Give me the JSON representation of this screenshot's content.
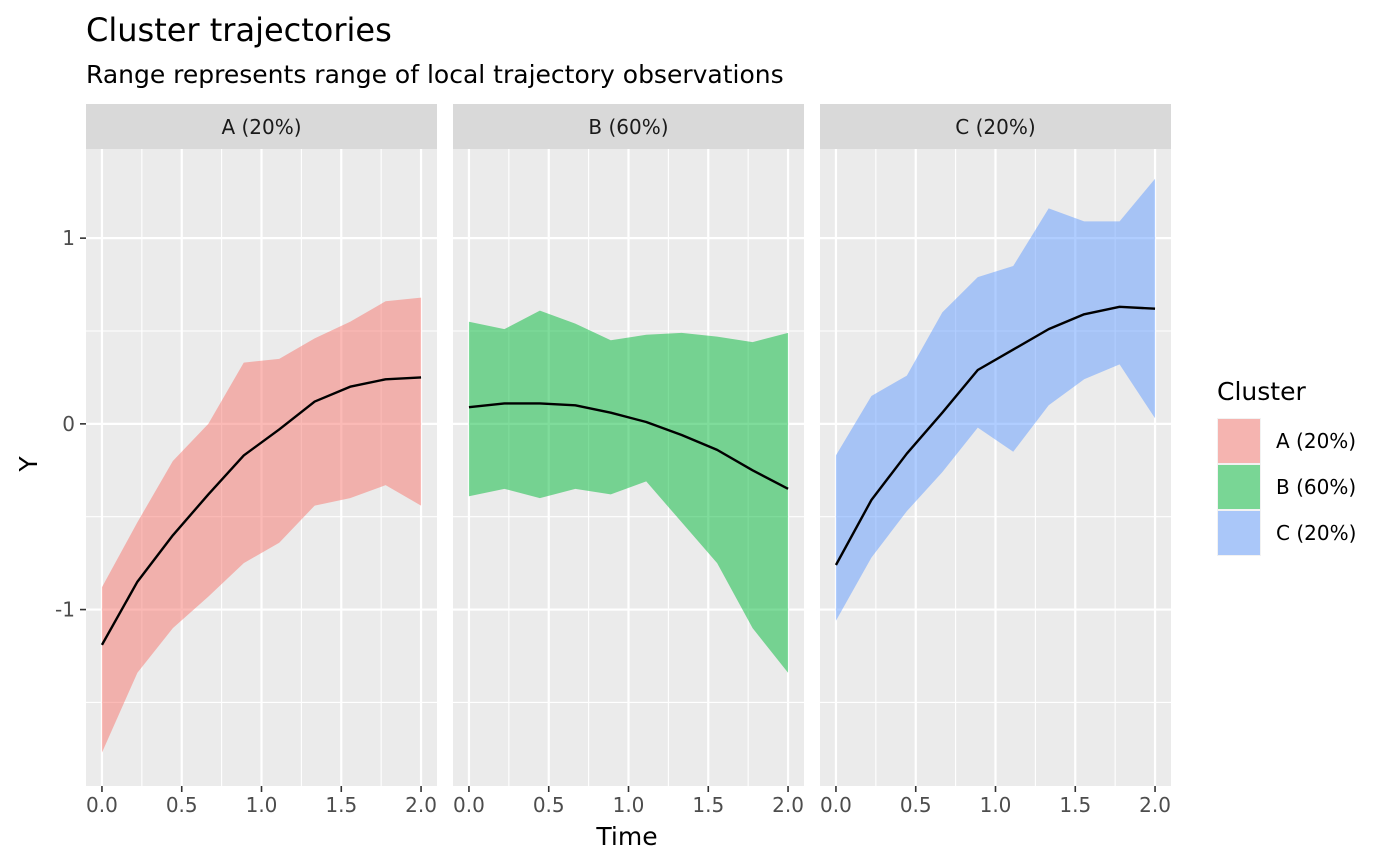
{
  "chart_data": {
    "type": "area",
    "title": "Cluster trajectories",
    "subtitle": "Range represents range of local trajectory observations",
    "xlabel": "Time",
    "ylabel": "Y",
    "xlim": [
      -0.1,
      2.1
    ],
    "ylim": [
      -1.95,
      1.48
    ],
    "x_ticks": [
      0.0,
      0.5,
      1.0,
      1.5,
      2.0
    ],
    "x_tick_labels": [
      "0.0",
      "0.5",
      "1.0",
      "1.5",
      "2.0"
    ],
    "y_ticks": [
      -1,
      0,
      1
    ],
    "y_tick_labels": [
      "-1",
      "0",
      "1"
    ],
    "grid": true,
    "legend": {
      "title": "Cluster",
      "position": "right"
    },
    "x": [
      0.0,
      0.2222,
      0.4444,
      0.6667,
      0.8889,
      1.1111,
      1.3333,
      1.5556,
      1.7778,
      2.0
    ],
    "series": [
      {
        "name": "A (20%)",
        "color": "#F8766D",
        "mean": [
          -1.19,
          -0.85,
          -0.6,
          -0.38,
          -0.17,
          -0.03,
          0.12,
          0.2,
          0.24,
          0.25
        ],
        "min": [
          -1.77,
          -1.34,
          -1.1,
          -0.93,
          -0.75,
          -0.64,
          -0.44,
          -0.4,
          -0.33,
          -0.44
        ],
        "max": [
          -0.88,
          -0.53,
          -0.2,
          0.0,
          0.33,
          0.35,
          0.46,
          0.55,
          0.66,
          0.68
        ]
      },
      {
        "name": "B (60%)",
        "color": "#00BA38",
        "mean": [
          0.09,
          0.11,
          0.11,
          0.1,
          0.06,
          0.01,
          -0.06,
          -0.14,
          -0.25,
          -0.35
        ],
        "min": [
          -0.39,
          -0.35,
          -0.4,
          -0.35,
          -0.38,
          -0.31,
          -0.53,
          -0.75,
          -1.1,
          -1.34
        ],
        "max": [
          0.55,
          0.51,
          0.61,
          0.54,
          0.45,
          0.48,
          0.49,
          0.47,
          0.44,
          0.49
        ]
      },
      {
        "name": "C (20%)",
        "color": "#619CFF",
        "mean": [
          -0.76,
          -0.41,
          -0.16,
          0.06,
          0.29,
          0.4,
          0.51,
          0.59,
          0.63,
          0.62
        ],
        "min": [
          -1.06,
          -0.72,
          -0.47,
          -0.26,
          -0.02,
          -0.15,
          0.1,
          0.24,
          0.32,
          0.03
        ],
        "max": [
          -0.17,
          0.15,
          0.26,
          0.6,
          0.79,
          0.85,
          1.16,
          1.09,
          1.09,
          1.32
        ]
      }
    ]
  }
}
